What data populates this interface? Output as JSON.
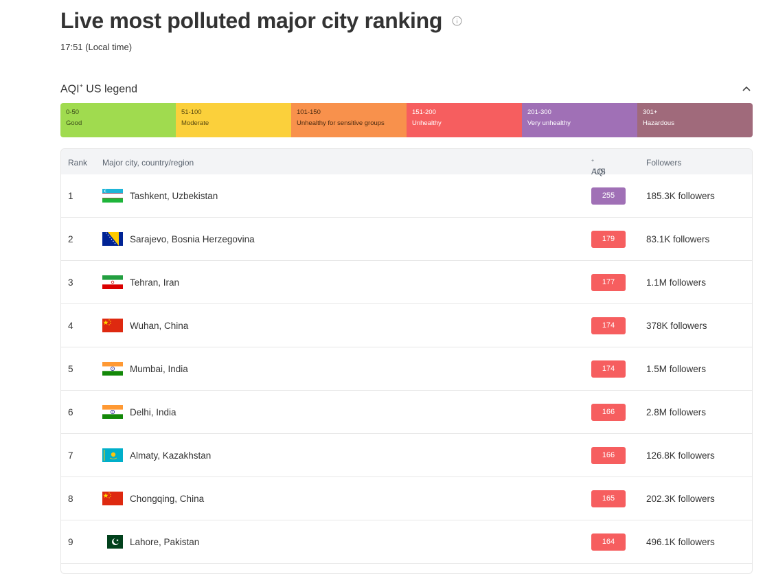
{
  "header": {
    "title": "Live most polluted major city ranking",
    "local_time": "17:51 (Local time)"
  },
  "legend": {
    "title_main": "AQI",
    "title_sup": "+",
    "title_rest": " US legend",
    "segments": [
      {
        "range": "0-50",
        "label": "Good",
        "color": "#a0db4f",
        "text_color": "#3a4a1a"
      },
      {
        "range": "51-100",
        "label": "Moderate",
        "color": "#fbd03b",
        "text_color": "#5a4a10"
      },
      {
        "range": "101-150",
        "label": "Unhealthy for sensitive groups",
        "color": "#f8914c",
        "text_color": "#4a2a10"
      },
      {
        "range": "151-200",
        "label": "Unhealthy",
        "color": "#f65e5f",
        "text_color": "#ffffff"
      },
      {
        "range": "201-300",
        "label": "Very unhealthy",
        "color": "#a070b6",
        "text_color": "#ffffff"
      },
      {
        "range": "301+",
        "label": "Hazardous",
        "color": "#a06a7b",
        "text_color": "#ffffff"
      }
    ]
  },
  "table": {
    "headers": {
      "rank": "Rank",
      "city": "Major city, country/region",
      "aqi_main": "AQI",
      "aqi_sup": "+",
      "aqi_rest": " US",
      "followers": "Followers"
    },
    "rows": [
      {
        "rank": "1",
        "city": "Tashkent, Uzbekistan",
        "flag": "uzbekistan-flag-icon",
        "aqi": "255",
        "aqi_color": "#a070b6",
        "followers": "185.3K followers"
      },
      {
        "rank": "2",
        "city": "Sarajevo, Bosnia Herzegovina",
        "flag": "bosnia-flag-icon",
        "aqi": "179",
        "aqi_color": "#f65e5f",
        "followers": "83.1K followers"
      },
      {
        "rank": "3",
        "city": "Tehran, Iran",
        "flag": "iran-flag-icon",
        "aqi": "177",
        "aqi_color": "#f65e5f",
        "followers": "1.1M followers"
      },
      {
        "rank": "4",
        "city": "Wuhan, China",
        "flag": "china-flag-icon",
        "aqi": "174",
        "aqi_color": "#f65e5f",
        "followers": "378K followers"
      },
      {
        "rank": "5",
        "city": "Mumbai, India",
        "flag": "india-flag-icon",
        "aqi": "174",
        "aqi_color": "#f65e5f",
        "followers": "1.5M followers"
      },
      {
        "rank": "6",
        "city": "Delhi, India",
        "flag": "india-flag-icon",
        "aqi": "166",
        "aqi_color": "#f65e5f",
        "followers": "2.8M followers"
      },
      {
        "rank": "7",
        "city": "Almaty, Kazakhstan",
        "flag": "kazakhstan-flag-icon",
        "aqi": "166",
        "aqi_color": "#f65e5f",
        "followers": "126.8K followers"
      },
      {
        "rank": "8",
        "city": "Chongqing, China",
        "flag": "china-flag-icon",
        "aqi": "165",
        "aqi_color": "#f65e5f",
        "followers": "202.3K followers"
      },
      {
        "rank": "9",
        "city": "Lahore, Pakistan",
        "flag": "pakistan-flag-icon",
        "aqi": "164",
        "aqi_color": "#f65e5f",
        "followers": "496.1K followers"
      }
    ]
  }
}
